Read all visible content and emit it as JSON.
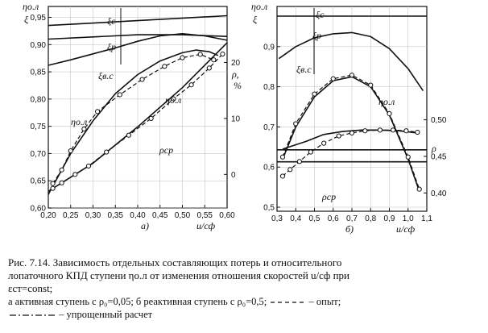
{
  "chart_data": [
    {
      "type": "line",
      "panel_label": "a)",
      "x_axis": {
        "label": "u/cф",
        "ticks": [
          "0,20",
          "0,25",
          "0,30",
          "0,35",
          "0,40",
          "0,45",
          "0,50",
          "0,55",
          "0,60"
        ],
        "xlim": [
          0.2,
          0.6
        ]
      },
      "y_left": {
        "label": "ηо.л",
        "label2": "ξ",
        "ticks": [
          "0,60",
          "0,65",
          "0,70",
          "0,75",
          "0,80",
          "0,85",
          "0,90",
          "0,95"
        ],
        "ylim": [
          0.6,
          0.97
        ]
      },
      "y_right": {
        "label": "ρ,",
        "unit": "%",
        "ticks": [
          "0",
          "10",
          "20"
        ],
        "ylim": [
          -6,
          30
        ]
      },
      "annotations": {
        "xi_c": "ξс",
        "xi_r": "ξр",
        "xi_vs": "ξв.с",
        "eta_ol": "ηо.л",
        "eta_ol_left": "ηо.л",
        "rho_cp": "ρср"
      },
      "series": [
        {
          "style": "solid",
          "x": [
            0.2,
            0.6
          ],
          "y": [
            0.935,
            0.953
          ]
        },
        {
          "style": "solid",
          "x": [
            0.2,
            0.3,
            0.4,
            0.5,
            0.6
          ],
          "y": [
            0.91,
            0.914,
            0.918,
            0.918,
            0.915
          ]
        },
        {
          "style": "solid",
          "x": [
            0.2,
            0.25,
            0.3,
            0.35,
            0.4,
            0.45,
            0.5,
            0.55,
            0.6
          ],
          "y": [
            0.862,
            0.872,
            0.883,
            0.894,
            0.906,
            0.916,
            0.92,
            0.916,
            0.908
          ]
        },
        {
          "style": "solid",
          "x": [
            0.2,
            0.25,
            0.3,
            0.35,
            0.4,
            0.45,
            0.5,
            0.53,
            0.56,
            0.58
          ],
          "y": [
            0.625,
            0.7,
            0.76,
            0.81,
            0.845,
            0.87,
            0.885,
            0.89,
            0.887,
            0.88
          ]
        },
        {
          "style": "dashed",
          "markers": true,
          "x": [
            0.21,
            0.23,
            0.25,
            0.28,
            0.31,
            0.36,
            0.41,
            0.46,
            0.5,
            0.54,
            0.57
          ],
          "y": [
            0.645,
            0.67,
            0.705,
            0.745,
            0.777,
            0.808,
            0.836,
            0.86,
            0.876,
            0.882,
            0.872
          ]
        },
        {
          "style": "solid",
          "axis": "right",
          "x": [
            0.2,
            0.3,
            0.4,
            0.5,
            0.6
          ],
          "y": [
            -3.0,
            2.0,
            8.5,
            15.5,
            23.5
          ]
        },
        {
          "style": "dashed",
          "markers": true,
          "axis": "right",
          "x": [
            0.21,
            0.23,
            0.26,
            0.29,
            0.33,
            0.38,
            0.43,
            0.48,
            0.52,
            0.56,
            0.59
          ],
          "y": [
            -2.5,
            -1.5,
            0.0,
            1.5,
            4.0,
            7.0,
            10.0,
            13.5,
            16.0,
            19.0,
            21.5
          ]
        }
      ]
    },
    {
      "type": "line",
      "panel_label": "б)",
      "x_axis": {
        "label": "u/cф",
        "ticks": [
          "0,3",
          "0,4",
          "0,5",
          "0,6",
          "0,7",
          "0,8",
          "0,9",
          "1,0",
          "1,1"
        ],
        "xlim": [
          0.3,
          1.1
        ]
      },
      "y_left": {
        "label": "ηо.л",
        "label2": "ξ",
        "ticks": [
          "0,5",
          "0,6",
          "0,7",
          "0,8",
          "0,9"
        ],
        "ylim": [
          0.49,
          1.0
        ]
      },
      "y_right": {
        "label": "ρ",
        "ticks": [
          "0,40",
          "0,45",
          "0,50"
        ],
        "ylim": [
          0.375,
          0.655
        ]
      },
      "annotations": {
        "xi_c": "ξс",
        "xi_r": "ξр",
        "xi_vs": "ξв.с",
        "eta_ol": "ηо.л",
        "rho_cp": "ρср"
      },
      "series": [
        {
          "style": "solid",
          "x": [
            0.3,
            1.1
          ],
          "y": [
            0.976,
            0.976
          ]
        },
        {
          "style": "solid",
          "x": [
            0.31,
            0.4,
            0.5,
            0.6,
            0.7,
            0.8,
            0.9,
            1.0,
            1.08
          ],
          "y": [
            0.87,
            0.9,
            0.922,
            0.932,
            0.935,
            0.925,
            0.895,
            0.845,
            0.79
          ]
        },
        {
          "style": "solid",
          "x": [
            0.33,
            0.4,
            0.5,
            0.6,
            0.7,
            0.8,
            0.9,
            1.0,
            1.06
          ],
          "y": [
            0.62,
            0.7,
            0.775,
            0.815,
            0.825,
            0.8,
            0.73,
            0.62,
            0.54
          ]
        },
        {
          "style": "dashed",
          "markers": true,
          "x": [
            0.33,
            0.4,
            0.5,
            0.6,
            0.7,
            0.8,
            0.9,
            1.0,
            1.06
          ],
          "y": [
            0.625,
            0.708,
            0.782,
            0.82,
            0.829,
            0.804,
            0.733,
            0.625,
            0.545
          ]
        },
        {
          "style": "solid",
          "x": [
            0.3,
            1.1
          ],
          "y": [
            0.643,
            0.643
          ]
        },
        {
          "style": "solid",
          "x": [
            0.3,
            1.1
          ],
          "y": [
            0.613,
            0.613
          ]
        },
        {
          "style": "solid",
          "axis": "right",
          "x": [
            0.33,
            0.45,
            0.55,
            0.65,
            0.75,
            0.85,
            0.95,
            1.05
          ],
          "y": [
            0.46,
            0.47,
            0.48,
            0.484,
            0.486,
            0.486,
            0.485,
            0.482
          ]
        },
        {
          "style": "dashed",
          "markers": true,
          "axis": "right",
          "x": [
            0.33,
            0.37,
            0.42,
            0.48,
            0.55,
            0.63,
            0.7,
            0.77,
            0.85,
            0.92,
            0.99,
            1.05
          ],
          "y": [
            0.423,
            0.432,
            0.443,
            0.456,
            0.468,
            0.478,
            0.482,
            0.485,
            0.486,
            0.486,
            0.485,
            0.483
          ]
        }
      ]
    }
  ],
  "caption": {
    "line1": "Рис. 7.14. Зависимость отдельных составляющих потерь и относительного",
    "line2": "лопаточного КПД ступени ηо.л от изменения отношения скоростей u/cф при",
    "line3": "εст=const;",
    "legend1": "а  активная ступень с ρ₀=0,05;  б  реактивная ступень с ρ₀=0,5;",
    "legend_exp": "– опыт;",
    "legend_simplified": "– упрощенный расчет"
  }
}
